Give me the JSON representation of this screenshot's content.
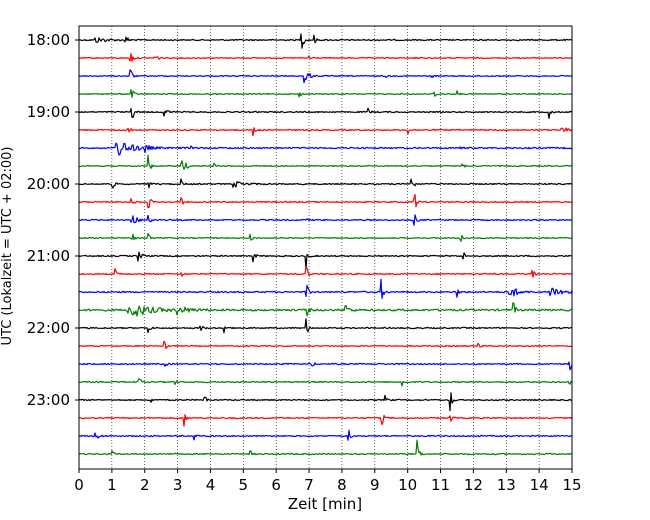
{
  "chart_data": {
    "type": "line",
    "title": "",
    "xlabel": "Zeit  [min]",
    "ylabel": "UTC (Lokalzeit = UTC + 02:00)",
    "xlim": [
      0,
      15
    ],
    "x_ticks": [
      "0",
      "1",
      "2",
      "3",
      "4",
      "5",
      "6",
      "7",
      "8",
      "9",
      "10",
      "11",
      "12",
      "13",
      "14",
      "15"
    ],
    "y_ticks": [
      "18:00",
      "19:00",
      "20:00",
      "21:00",
      "22:00",
      "23:00"
    ],
    "grid": "vertical dotted lines at each minute",
    "line_duration_min": 15,
    "line_colors_cycle": [
      "#000000",
      "#ff0000",
      "#0000ff",
      "#008000"
    ],
    "series": [
      {
        "start": "18:00",
        "color": "#000000",
        "noise": 0.6,
        "events": [
          {
            "t": 0.5,
            "a": 3,
            "w": 0.3
          },
          {
            "t": 1.4,
            "a": 4,
            "w": 0.1
          },
          {
            "t": 6.75,
            "a": 15,
            "w": 0.06
          },
          {
            "t": 7.15,
            "a": 5,
            "w": 0.05
          }
        ]
      },
      {
        "start": "18:15",
        "color": "#ff0000",
        "noise": 0.5,
        "events": [
          {
            "t": 1.55,
            "a": 14,
            "w": 0.05
          },
          {
            "t": 2.3,
            "a": 5,
            "w": 0.08
          },
          {
            "t": 7.0,
            "a": 4,
            "w": 0.06
          },
          {
            "t": 10.2,
            "a": 3,
            "w": 0.05
          }
        ]
      },
      {
        "start": "18:30",
        "color": "#0000ff",
        "noise": 0.5,
        "events": [
          {
            "t": 1.55,
            "a": 12,
            "w": 0.05
          },
          {
            "t": 6.85,
            "a": 12,
            "w": 0.1
          },
          {
            "t": 9.3,
            "a": 3,
            "w": 0.05
          },
          {
            "t": 10.7,
            "a": 4,
            "w": 0.05
          }
        ]
      },
      {
        "start": "18:45",
        "color": "#008000",
        "noise": 0.5,
        "events": [
          {
            "t": 1.58,
            "a": 12,
            "w": 0.05
          },
          {
            "t": 6.7,
            "a": 4,
            "w": 0.05
          },
          {
            "t": 10.8,
            "a": 5,
            "w": 0.06
          },
          {
            "t": 11.5,
            "a": 3,
            "w": 0.05
          }
        ]
      },
      {
        "start": "19:00",
        "color": "#000000",
        "noise": 0.6,
        "events": [
          {
            "t": 1.6,
            "a": 12,
            "w": 0.05
          },
          {
            "t": 2.6,
            "a": 9,
            "w": 0.06
          },
          {
            "t": 8.8,
            "a": 4,
            "w": 0.05
          },
          {
            "t": 14.3,
            "a": 6,
            "w": 0.05
          }
        ]
      },
      {
        "start": "19:15",
        "color": "#ff0000",
        "noise": 0.6,
        "events": [
          {
            "t": 1.4,
            "a": 5,
            "w": 0.1
          },
          {
            "t": 5.3,
            "a": 8,
            "w": 0.05
          },
          {
            "t": 10.0,
            "a": 5,
            "w": 0.05
          },
          {
            "t": 14.6,
            "a": 4,
            "w": 0.2
          }
        ]
      },
      {
        "start": "19:30",
        "color": "#0000ff",
        "noise": 0.7,
        "events": [
          {
            "t": 1.1,
            "a": 10,
            "w": 0.4
          },
          {
            "t": 2.0,
            "a": 4,
            "w": 0.1
          },
          {
            "t": 3.4,
            "a": 3,
            "w": 0.05
          },
          {
            "t": 11.6,
            "a": 3,
            "w": 0.05
          }
        ]
      },
      {
        "start": "19:45",
        "color": "#008000",
        "noise": 0.5,
        "events": [
          {
            "t": 2.1,
            "a": 13,
            "w": 0.05
          },
          {
            "t": 3.1,
            "a": 12,
            "w": 0.1
          },
          {
            "t": 4.1,
            "a": 5,
            "w": 0.05
          },
          {
            "t": 11.6,
            "a": 4,
            "w": 0.08
          }
        ]
      },
      {
        "start": "20:00",
        "color": "#000000",
        "noise": 0.6,
        "events": [
          {
            "t": 1.0,
            "a": 8,
            "w": 0.05
          },
          {
            "t": 2.1,
            "a": 6,
            "w": 0.05
          },
          {
            "t": 3.1,
            "a": 5,
            "w": 0.05
          },
          {
            "t": 4.7,
            "a": 3,
            "w": 0.3
          },
          {
            "t": 10.1,
            "a": 15,
            "w": 0.05
          }
        ]
      },
      {
        "start": "20:15",
        "color": "#ff0000",
        "noise": 0.6,
        "events": [
          {
            "t": 1.6,
            "a": 6,
            "w": 0.05
          },
          {
            "t": 2.1,
            "a": 12,
            "w": 0.05
          },
          {
            "t": 3.1,
            "a": 5,
            "w": 0.05
          },
          {
            "t": 10.2,
            "a": 13,
            "w": 0.05
          }
        ]
      },
      {
        "start": "20:30",
        "color": "#0000ff",
        "noise": 0.6,
        "events": [
          {
            "t": 1.6,
            "a": 10,
            "w": 0.1
          },
          {
            "t": 2.1,
            "a": 10,
            "w": 0.05
          },
          {
            "t": 6.9,
            "a": 3,
            "w": 0.05
          },
          {
            "t": 10.2,
            "a": 8,
            "w": 0.05
          }
        ]
      },
      {
        "start": "20:45",
        "color": "#008000",
        "noise": 0.5,
        "events": [
          {
            "t": 1.6,
            "a": 8,
            "w": 0.05
          },
          {
            "t": 2.1,
            "a": 8,
            "w": 0.05
          },
          {
            "t": 5.2,
            "a": 7,
            "w": 0.05
          },
          {
            "t": 11.6,
            "a": 12,
            "w": 0.05
          }
        ]
      },
      {
        "start": "21:00",
        "color": "#000000",
        "noise": 0.6,
        "events": [
          {
            "t": 1.8,
            "a": 5,
            "w": 0.1
          },
          {
            "t": 5.3,
            "a": 6,
            "w": 0.05
          },
          {
            "t": 6.9,
            "a": 14,
            "w": 0.05
          },
          {
            "t": 11.7,
            "a": 4,
            "w": 0.05
          }
        ]
      },
      {
        "start": "21:15",
        "color": "#ff0000",
        "noise": 0.6,
        "events": [
          {
            "t": 1.1,
            "a": 5,
            "w": 0.05
          },
          {
            "t": 3.1,
            "a": 4,
            "w": 0.05
          },
          {
            "t": 6.9,
            "a": 12,
            "w": 0.05
          },
          {
            "t": 13.8,
            "a": 10,
            "w": 0.05
          }
        ]
      },
      {
        "start": "21:30",
        "color": "#0000ff",
        "noise": 0.7,
        "events": [
          {
            "t": 6.9,
            "a": 13,
            "w": 0.05
          },
          {
            "t": 9.2,
            "a": 12,
            "w": 0.05
          },
          {
            "t": 11.5,
            "a": 5,
            "w": 0.05
          },
          {
            "t": 13.1,
            "a": 7,
            "w": 0.2
          },
          {
            "t": 14.3,
            "a": 6,
            "w": 0.4
          }
        ]
      },
      {
        "start": "21:45",
        "color": "#008000",
        "noise": 0.9,
        "events": [
          {
            "t": 1.5,
            "a": 9,
            "w": 0.5
          },
          {
            "t": 3.0,
            "a": 4,
            "w": 0.3
          },
          {
            "t": 6.9,
            "a": 12,
            "w": 0.05
          },
          {
            "t": 8.1,
            "a": 6,
            "w": 0.1
          },
          {
            "t": 13.2,
            "a": 12,
            "w": 0.05
          }
        ]
      },
      {
        "start": "22:00",
        "color": "#000000",
        "noise": 0.6,
        "events": [
          {
            "t": 2.1,
            "a": 6,
            "w": 0.05
          },
          {
            "t": 3.7,
            "a": 5,
            "w": 0.05
          },
          {
            "t": 4.4,
            "a": 6,
            "w": 0.05
          },
          {
            "t": 6.9,
            "a": 12,
            "w": 0.05
          }
        ]
      },
      {
        "start": "22:15",
        "color": "#ff0000",
        "noise": 0.5,
        "events": [
          {
            "t": 2.6,
            "a": 12,
            "w": 0.05
          },
          {
            "t": 12.1,
            "a": 12,
            "w": 0.05
          }
        ]
      },
      {
        "start": "22:30",
        "color": "#0000ff",
        "noise": 0.6,
        "events": [
          {
            "t": 2.6,
            "a": 4,
            "w": 0.05
          },
          {
            "t": 7.1,
            "a": 3,
            "w": 0.05
          },
          {
            "t": 14.9,
            "a": 14,
            "w": 0.06
          }
        ]
      },
      {
        "start": "22:45",
        "color": "#008000",
        "noise": 0.6,
        "events": [
          {
            "t": 1.8,
            "a": 9,
            "w": 0.05
          },
          {
            "t": 2.9,
            "a": 4,
            "w": 0.05
          },
          {
            "t": 9.8,
            "a": 12,
            "w": 0.05
          },
          {
            "t": 14.9,
            "a": 6,
            "w": 0.05
          }
        ]
      },
      {
        "start": "23:00",
        "color": "#000000",
        "noise": 0.6,
        "events": [
          {
            "t": 2.2,
            "a": 4,
            "w": 0.05
          },
          {
            "t": 3.8,
            "a": 8,
            "w": 0.05
          },
          {
            "t": 9.3,
            "a": 5,
            "w": 0.05
          },
          {
            "t": 11.3,
            "a": 12,
            "w": 0.05
          }
        ]
      },
      {
        "start": "23:15",
        "color": "#ff0000",
        "noise": 0.6,
        "events": [
          {
            "t": 3.2,
            "a": 8,
            "w": 0.05
          },
          {
            "t": 9.2,
            "a": 10,
            "w": 0.05
          },
          {
            "t": 11.3,
            "a": 5,
            "w": 0.05
          }
        ]
      },
      {
        "start": "23:30",
        "color": "#0000ff",
        "noise": 0.6,
        "events": [
          {
            "t": 0.5,
            "a": 5,
            "w": 0.08
          },
          {
            "t": 3.5,
            "a": 5,
            "w": 0.05
          },
          {
            "t": 8.2,
            "a": 7,
            "w": 0.05
          }
        ]
      },
      {
        "start": "23:45",
        "color": "#008000",
        "noise": 0.6,
        "events": [
          {
            "t": 1.0,
            "a": 4,
            "w": 0.05
          },
          {
            "t": 5.2,
            "a": 4,
            "w": 0.05
          },
          {
            "t": 10.3,
            "a": 14,
            "w": 0.05
          }
        ]
      }
    ]
  }
}
